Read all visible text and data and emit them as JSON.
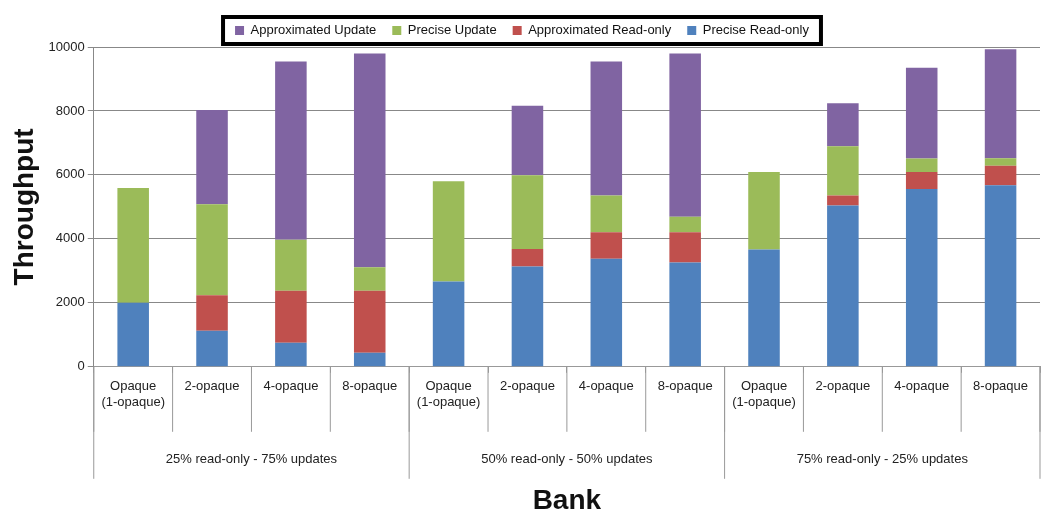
{
  "chart_data": {
    "type": "bar",
    "stacked": true,
    "xlabel": "Bank",
    "ylabel": "Throughput",
    "categories": [
      "Opaque\n(1-opaque)",
      "2-opaque",
      "4-opaque",
      "8-opaque",
      "Opaque\n(1-opaque)",
      "2-opaque",
      "4-opaque",
      "8-opaque",
      "Opaque\n(1-opaque)",
      "2-opaque",
      "4-opaque",
      "8-opaque"
    ],
    "series": [
      {
        "name": "Precise Read-only",
        "color": "#4f81bd",
        "values": [
          2000,
          1130,
          750,
          440,
          2670,
          3140,
          3380,
          3260,
          3670,
          5040,
          5560,
          5680
        ]
      },
      {
        "name": "Approximated Read-only",
        "color": "#c0504d",
        "values": [
          0,
          1110,
          1630,
          1940,
          0,
          540,
          830,
          950,
          0,
          320,
          530,
          610
        ]
      },
      {
        "name": "Precise Update",
        "color": "#9bbb59",
        "values": [
          3590,
          2840,
          1590,
          730,
          3130,
          2310,
          1150,
          480,
          2420,
          1540,
          420,
          230
        ]
      },
      {
        "name": "Approximated Update",
        "color": "#8064a2",
        "values": [
          0,
          2950,
          5580,
          6690,
          0,
          2170,
          4190,
          5110,
          0,
          1340,
          2840,
          3410
        ]
      }
    ],
    "ylim": [
      0,
      10000
    ],
    "yticks": [
      0,
      2000,
      4000,
      6000,
      8000,
      10000
    ],
    "grid": "y",
    "legend": "top",
    "annotations": [
      "25% read-only - 75% updates",
      "50% read-only - 50% updates",
      "75% read-only - 25% updates"
    ]
  }
}
